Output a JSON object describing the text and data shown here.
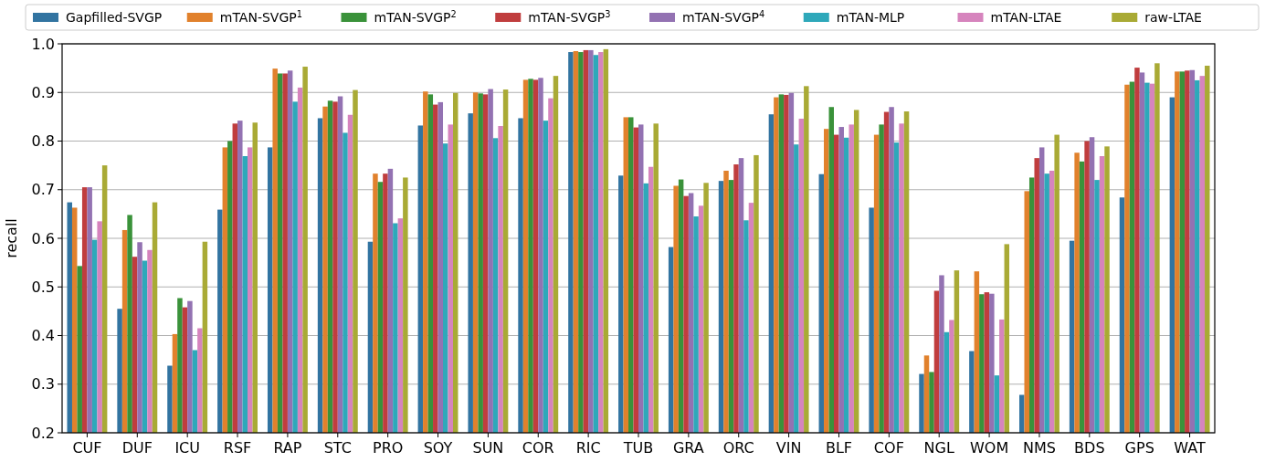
{
  "chart_data": {
    "type": "bar",
    "ylabel": "recall",
    "categories": [
      "CUF",
      "DUF",
      "ICU",
      "RSF",
      "RAP",
      "STC",
      "PRO",
      "SOY",
      "SUN",
      "COR",
      "RIC",
      "TUB",
      "GRA",
      "ORC",
      "VIN",
      "BLF",
      "COF",
      "NGL",
      "WOM",
      "NMS",
      "BDS",
      "GPS",
      "WAT"
    ],
    "series": [
      {
        "name": "Gapfilled-SVGP",
        "color": "#3274a1",
        "values": [
          0.674,
          0.455,
          0.338,
          0.659,
          0.787,
          0.847,
          0.593,
          0.832,
          0.857,
          0.847,
          0.983,
          0.729,
          0.582,
          0.718,
          0.855,
          0.732,
          0.663,
          0.321,
          0.368,
          0.278,
          0.595,
          0.684,
          0.89
        ]
      },
      {
        "name": "mTAN-SVGP$^{1}$",
        "color": "#e1812c",
        "values": [
          0.663,
          0.617,
          0.403,
          0.787,
          0.949,
          0.871,
          0.733,
          0.902,
          0.9,
          0.926,
          0.985,
          0.849,
          0.708,
          0.739,
          0.89,
          0.825,
          0.813,
          0.359,
          0.532,
          0.697,
          0.776,
          0.916,
          0.943
        ]
      },
      {
        "name": "mTAN-SVGP$^{2}$",
        "color": "#3a923a",
        "values": [
          0.543,
          0.648,
          0.477,
          0.8,
          0.939,
          0.883,
          0.716,
          0.896,
          0.898,
          0.928,
          0.983,
          0.849,
          0.721,
          0.72,
          0.896,
          0.87,
          0.834,
          0.325,
          0.485,
          0.725,
          0.758,
          0.922,
          0.943
        ]
      },
      {
        "name": "mTAN-SVGP$^{3}$",
        "color": "#c03d3e",
        "values": [
          0.705,
          0.562,
          0.458,
          0.836,
          0.939,
          0.881,
          0.733,
          0.875,
          0.896,
          0.926,
          0.987,
          0.828,
          0.687,
          0.752,
          0.895,
          0.813,
          0.86,
          0.492,
          0.489,
          0.765,
          0.8,
          0.951,
          0.945
        ]
      },
      {
        "name": "mTAN-SVGP$^{4}$",
        "color": "#9372b2",
        "values": [
          0.705,
          0.592,
          0.471,
          0.842,
          0.945,
          0.892,
          0.743,
          0.88,
          0.907,
          0.93,
          0.987,
          0.834,
          0.693,
          0.765,
          0.899,
          0.829,
          0.87,
          0.524,
          0.486,
          0.787,
          0.808,
          0.941,
          0.946
        ]
      },
      {
        "name": "mTAN-MLP",
        "color": "#2ea8ba",
        "values": [
          0.597,
          0.554,
          0.37,
          0.769,
          0.881,
          0.817,
          0.631,
          0.795,
          0.806,
          0.842,
          0.977,
          0.713,
          0.645,
          0.637,
          0.793,
          0.807,
          0.797,
          0.407,
          0.318,
          0.733,
          0.72,
          0.92,
          0.925
        ]
      },
      {
        "name": "mTAN-LTAE",
        "color": "#d684bd",
        "values": [
          0.635,
          0.576,
          0.415,
          0.787,
          0.91,
          0.854,
          0.641,
          0.834,
          0.831,
          0.888,
          0.983,
          0.747,
          0.667,
          0.673,
          0.846,
          0.834,
          0.836,
          0.432,
          0.433,
          0.739,
          0.769,
          0.918,
          0.934
        ]
      },
      {
        "name": "raw-LTAE",
        "color": "#a9aa35",
        "values": [
          0.75,
          0.674,
          0.593,
          0.838,
          0.953,
          0.905,
          0.725,
          0.899,
          0.906,
          0.934,
          0.989,
          0.836,
          0.714,
          0.771,
          0.913,
          0.864,
          0.861,
          0.534,
          0.588,
          0.813,
          0.789,
          0.96,
          0.955
        ]
      }
    ],
    "ylim": [
      0.2,
      1.0
    ],
    "yticks": [
      {
        "value": 0.2,
        "label": "0.2"
      },
      {
        "value": 0.3,
        "label": "0.3"
      },
      {
        "value": 0.4,
        "label": "0.4"
      },
      {
        "value": 0.5,
        "label": "0.5"
      },
      {
        "value": 0.6,
        "label": "0.6"
      },
      {
        "value": 0.7,
        "label": "0.7"
      },
      {
        "value": 0.8,
        "label": "0.8"
      },
      {
        "value": 0.9,
        "label": "0.9"
      },
      {
        "value": 1.0,
        "label": "1.0"
      }
    ],
    "grid": "y",
    "legend": "top"
  }
}
